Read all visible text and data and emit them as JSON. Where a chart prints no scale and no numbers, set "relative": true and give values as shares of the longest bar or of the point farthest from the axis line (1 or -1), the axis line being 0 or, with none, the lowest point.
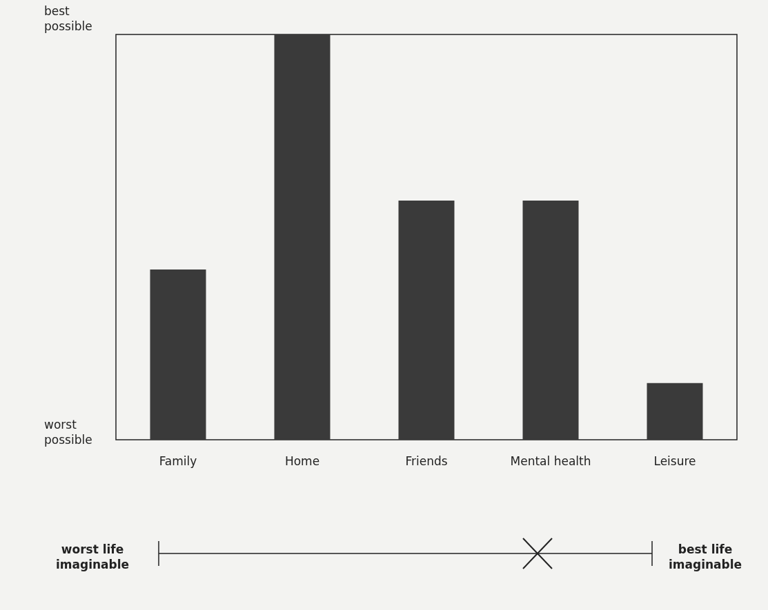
{
  "chart_data": {
    "type": "bar",
    "categories": [
      "Family",
      "Home",
      "Friends",
      "Mental health",
      "Leisure"
    ],
    "values": [
      0.42,
      1.0,
      0.59,
      0.59,
      0.14
    ],
    "color": "#3a3a3a",
    "relative": true,
    "annotations": [
      "worst\npossible",
      "best\npossible",
      "worst life\nimaginable",
      "best life\nimaginable"
    ]
  }
}
